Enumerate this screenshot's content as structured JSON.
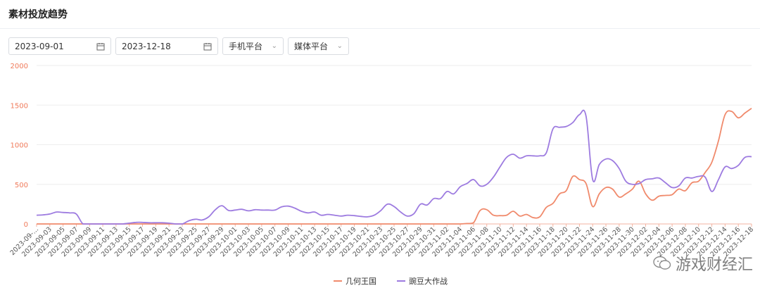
{
  "page": {
    "title": "素材投放趋势"
  },
  "filters": {
    "start_date": "2023-09-01",
    "end_date": "2023-12-18",
    "platform_select": "手机平台",
    "media_select": "媒体平台"
  },
  "watermark": {
    "text": "游戏财经汇"
  },
  "colors": {
    "series_1": "#f08a6c",
    "series_2": "#9d7be0",
    "axis_text": "#f07a5a",
    "grid": "#eeeeee"
  },
  "chart_data": {
    "type": "line",
    "yticks": [
      0,
      500,
      1000,
      1500,
      2000
    ],
    "ylim": [
      0,
      2000
    ],
    "x": [
      "2023-09-01",
      "2023-09-02",
      "2023-09-03",
      "2023-09-04",
      "2023-09-05",
      "2023-09-06",
      "2023-09-07",
      "2023-09-08",
      "2023-09-09",
      "2023-09-10",
      "2023-09-11",
      "2023-09-12",
      "2023-09-13",
      "2023-09-14",
      "2023-09-15",
      "2023-09-16",
      "2023-09-17",
      "2023-09-18",
      "2023-09-19",
      "2023-09-20",
      "2023-09-21",
      "2023-09-22",
      "2023-09-23",
      "2023-09-24",
      "2023-09-25",
      "2023-09-26",
      "2023-09-27",
      "2023-09-28",
      "2023-09-29",
      "2023-09-30",
      "2023-10-01",
      "2023-10-02",
      "2023-10-03",
      "2023-10-04",
      "2023-10-05",
      "2023-10-06",
      "2023-10-07",
      "2023-10-08",
      "2023-10-09",
      "2023-10-10",
      "2023-10-11",
      "2023-10-12",
      "2023-10-13",
      "2023-10-14",
      "2023-10-15",
      "2023-10-16",
      "2023-10-17",
      "2023-10-18",
      "2023-10-19",
      "2023-10-20",
      "2023-10-21",
      "2023-10-22",
      "2023-10-23",
      "2023-10-24",
      "2023-10-25",
      "2023-10-26",
      "2023-10-27",
      "2023-10-28",
      "2023-10-29",
      "2023-10-30",
      "2023-10-31",
      "2023-11-01",
      "2023-11-02",
      "2023-11-03",
      "2023-11-04",
      "2023-11-05",
      "2023-11-06",
      "2023-11-07",
      "2023-11-08",
      "2023-11-09",
      "2023-11-10",
      "2023-11-11",
      "2023-11-12",
      "2023-11-13",
      "2023-11-14",
      "2023-11-15",
      "2023-11-16",
      "2023-11-17",
      "2023-11-18",
      "2023-11-19",
      "2023-11-20",
      "2023-11-21",
      "2023-11-22",
      "2023-11-23",
      "2023-11-24",
      "2023-11-25",
      "2023-11-26",
      "2023-11-27",
      "2023-11-28",
      "2023-11-29",
      "2023-11-30",
      "2023-12-01",
      "2023-12-02",
      "2023-12-03",
      "2023-12-04",
      "2023-12-05",
      "2023-12-06",
      "2023-12-07",
      "2023-12-08",
      "2023-12-09",
      "2023-12-10",
      "2023-12-11",
      "2023-12-12",
      "2023-12-13",
      "2023-12-14",
      "2023-12-15",
      "2023-12-16",
      "2023-12-17",
      "2023-12-18"
    ],
    "x_tick_labels": [
      "2023-09-...",
      "2023-09-03",
      "2023-09-05",
      "2023-09-07",
      "2023-09-09",
      "2023-09-11",
      "2023-09-13",
      "2023-09-15",
      "2023-09-17",
      "2023-09-19",
      "2023-09-21",
      "2023-09-23",
      "2023-09-25",
      "2023-09-27",
      "2023-09-29",
      "2023-10-01",
      "2023-10-03",
      "2023-10-05",
      "2023-10-07",
      "2023-10-09",
      "2023-10-11",
      "2023-10-13",
      "2023-10-15",
      "2023-10-17",
      "2023-10-19",
      "2023-10-21",
      "2023-10-23",
      "2023-10-25",
      "2023-10-27",
      "2023-10-29",
      "2023-10-31",
      "2023-11-02",
      "2023-11-04",
      "2023-11-06",
      "2023-11-08",
      "2023-11-10",
      "2023-11-12",
      "2023-11-14",
      "2023-11-16",
      "2023-11-18",
      "2023-11-20",
      "2023-11-22",
      "2023-11-24",
      "2023-11-26",
      "2023-11-28",
      "2023-11-30",
      "2023-12-02",
      "2023-12-04",
      "2023-12-06",
      "2023-12-08",
      "2023-12-10",
      "2023-12-12",
      "2023-12-14",
      "2023-12-16",
      "2023-12-18"
    ],
    "series": [
      {
        "name": "几何王国",
        "color": "#f08a6c",
        "values": [
          0,
          0,
          0,
          0,
          0,
          0,
          0,
          0,
          0,
          0,
          0,
          0,
          0,
          0,
          0,
          0,
          0,
          0,
          0,
          0,
          0,
          0,
          0,
          0,
          0,
          0,
          0,
          0,
          0,
          0,
          0,
          0,
          0,
          0,
          0,
          0,
          0,
          0,
          0,
          0,
          0,
          0,
          0,
          0,
          0,
          0,
          0,
          0,
          0,
          0,
          0,
          0,
          0,
          0,
          0,
          0,
          0,
          0,
          0,
          0,
          0,
          0,
          0,
          0,
          0,
          5,
          15,
          170,
          180,
          110,
          105,
          110,
          160,
          100,
          120,
          80,
          90,
          210,
          260,
          380,
          420,
          600,
          560,
          510,
          220,
          380,
          460,
          440,
          340,
          380,
          440,
          540,
          380,
          300,
          350,
          360,
          370,
          440,
          420,
          520,
          540,
          650,
          780,
          1050,
          1380,
          1420,
          1340,
          1400,
          1460
        ]
      },
      {
        "name": "豌豆大作战",
        "color": "#9d7be0",
        "values": [
          110,
          115,
          125,
          150,
          145,
          140,
          125,
          0,
          0,
          0,
          0,
          0,
          0,
          0,
          10,
          20,
          20,
          15,
          15,
          15,
          10,
          0,
          0,
          40,
          60,
          50,
          90,
          180,
          230,
          170,
          175,
          185,
          165,
          180,
          175,
          175,
          175,
          215,
          225,
          200,
          160,
          140,
          150,
          110,
          120,
          110,
          100,
          110,
          105,
          95,
          90,
          110,
          170,
          250,
          220,
          150,
          100,
          130,
          250,
          240,
          320,
          320,
          410,
          380,
          470,
          510,
          560,
          480,
          500,
          590,
          720,
          840,
          880,
          830,
          860,
          860,
          860,
          900,
          1200,
          1220,
          1230,
          1280,
          1380,
          1360,
          560,
          750,
          820,
          800,
          700,
          540,
          500,
          510,
          560,
          570,
          580,
          520,
          460,
          480,
          580,
          580,
          600,
          590,
          410,
          560,
          720,
          700,
          740,
          840,
          850
        ]
      }
    ],
    "grid": true,
    "legend_position": "bottom-center"
  }
}
